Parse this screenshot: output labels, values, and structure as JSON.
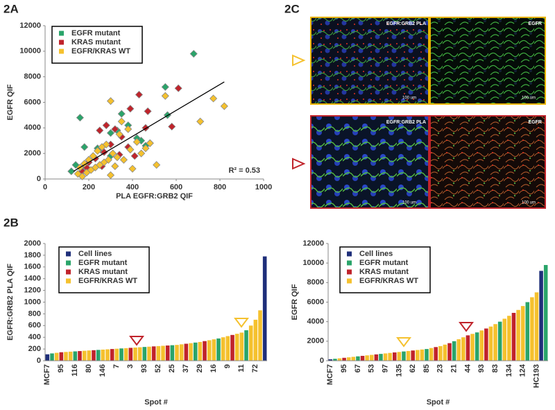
{
  "panel_labels": [
    "2A",
    "2C",
    "2B"
  ],
  "chart_data": [
    {
      "type": "scatter",
      "x_label": "PLA EGFR:GRB2 QIF",
      "y_label": "EGFR QIF",
      "xlim": [
        0,
        1000
      ],
      "xticks": [
        0,
        200,
        400,
        600,
        800,
        1000
      ],
      "ylim": [
        0,
        12000
      ],
      "yticks": [
        0,
        2000,
        4000,
        6000,
        8000,
        10000,
        12000
      ],
      "legend": "upper left",
      "annotation": "R² = 0.53",
      "trendline": {
        "x": [
          130,
          820
        ],
        "y": [
          600,
          7600
        ],
        "color": "#000000"
      },
      "series": [
        {
          "name": "EGFR mutant",
          "color": "#2aa46a",
          "x": [
            680,
            550,
            160,
            560,
            300,
            440,
            350,
            480,
            460,
            240,
            180,
            140,
            200,
            380,
            330,
            120,
            260,
            420,
            170,
            300
          ],
          "y": [
            9800,
            7200,
            4800,
            5000,
            3600,
            3000,
            5100,
            2800,
            2600,
            2400,
            2500,
            1100,
            1500,
            4200,
            3800,
            600,
            2200,
            3200,
            800,
            1800
          ]
        },
        {
          "name": "KRAS mutant",
          "color": "#c0232b",
          "x": [
            610,
            430,
            470,
            580,
            390,
            280,
            320,
            460,
            250,
            350,
            200,
            270,
            300,
            410,
            170,
            230,
            380,
            260,
            190,
            340
          ],
          "y": [
            7100,
            6600,
            5300,
            4100,
            5500,
            4200,
            3900,
            4000,
            3800,
            3300,
            1300,
            2100,
            2700,
            1800,
            600,
            1600,
            2500,
            1000,
            900,
            1900
          ]
        },
        {
          "name": "EGFR/KRAS WT",
          "color": "#f5c12e",
          "x": [
            820,
            770,
            710,
            550,
            510,
            300,
            350,
            380,
            420,
            460,
            400,
            340,
            280,
            260,
            240,
            220,
            200,
            180,
            160,
            150,
            310,
            330,
            290,
            270,
            250,
            230,
            210,
            390,
            440,
            360,
            320,
            480,
            300,
            190,
            170
          ],
          "y": [
            5700,
            6300,
            4500,
            6500,
            1100,
            6100,
            4500,
            3900,
            2900,
            2400,
            800,
            3500,
            2700,
            2500,
            2200,
            1800,
            1500,
            1200,
            900,
            400,
            2000,
            1700,
            1500,
            1300,
            1100,
            900,
            700,
            2300,
            2000,
            1500,
            1000,
            2800,
            300,
            500,
            200
          ]
        }
      ]
    },
    {
      "type": "bar",
      "x_label": "Spot #",
      "y_label": "EGFR:GRB2 PLA QIF",
      "ylim": [
        0,
        2000
      ],
      "yticks": [
        0,
        200,
        400,
        600,
        800,
        1000,
        1200,
        1400,
        1600,
        1800,
        2000
      ],
      "legend": "upper left",
      "categories": [
        "MCF7",
        null,
        null,
        "95",
        null,
        null,
        "116",
        null,
        null,
        "80",
        null,
        null,
        "146",
        null,
        null,
        "7",
        null,
        null,
        "3",
        null,
        null,
        "93",
        null,
        null,
        "52",
        null,
        null,
        "25",
        null,
        null,
        "37",
        null,
        null,
        "29",
        null,
        null,
        "16",
        null,
        null,
        "9",
        null,
        null,
        "11",
        null,
        null,
        "72",
        null,
        null
      ],
      "series": [
        {
          "name": "Cell lines",
          "color": "#1f2f7a",
          "values": [
            110,
            null,
            null,
            null,
            null,
            null,
            null,
            null,
            null,
            null,
            null,
            null,
            null,
            null,
            null,
            null,
            null,
            null,
            null,
            null,
            null,
            null,
            null,
            null,
            null,
            null,
            null,
            null,
            null,
            null,
            null,
            null,
            null,
            null,
            null,
            null,
            null,
            null,
            null,
            null,
            null,
            null,
            null,
            null,
            null,
            null,
            null,
            1780
          ]
        },
        {
          "name": "EGFR mutant",
          "color": "#2aa46a",
          "values": [
            null,
            125,
            null,
            null,
            null,
            null,
            160,
            null,
            null,
            null,
            null,
            185,
            null,
            null,
            null,
            null,
            210,
            null,
            null,
            null,
            null,
            235,
            null,
            null,
            null,
            null,
            null,
            265,
            null,
            null,
            null,
            null,
            310,
            null,
            null,
            null,
            null,
            380,
            null,
            null,
            null,
            null,
            null,
            520,
            null,
            null,
            null,
            null
          ]
        },
        {
          "name": "KRAS mutant",
          "color": "#c0232b",
          "values": [
            null,
            null,
            null,
            145,
            null,
            null,
            null,
            165,
            null,
            null,
            180,
            null,
            null,
            null,
            200,
            null,
            null,
            null,
            220,
            null,
            null,
            null,
            null,
            245,
            null,
            null,
            260,
            null,
            null,
            null,
            290,
            null,
            null,
            null,
            335,
            null,
            null,
            null,
            null,
            null,
            440,
            null,
            null,
            null,
            null,
            null,
            null,
            null
          ]
        },
        {
          "name": "EGFR/KRAS WT",
          "color": "#f5c12e",
          "values": [
            null,
            null,
            135,
            null,
            150,
            155,
            null,
            null,
            170,
            175,
            null,
            null,
            190,
            195,
            null,
            205,
            null,
            215,
            null,
            225,
            230,
            null,
            240,
            null,
            250,
            255,
            null,
            null,
            270,
            280,
            null,
            300,
            null,
            320,
            null,
            350,
            365,
            null,
            400,
            420,
            null,
            460,
            480,
            null,
            600,
            700,
            860,
            null
          ]
        }
      ]
    },
    {
      "type": "bar",
      "x_label": "Spot #",
      "y_label": "EGFR QIF",
      "ylim": [
        0,
        12000
      ],
      "yticks": [
        0,
        2000,
        4000,
        6000,
        8000,
        10000,
        12000
      ],
      "legend": "upper left",
      "categories": [
        "MCF7",
        null,
        null,
        "95",
        null,
        null,
        "67",
        null,
        null,
        "53",
        null,
        null,
        "97",
        null,
        null,
        "135",
        null,
        null,
        "62",
        null,
        null,
        "85",
        null,
        null,
        "23",
        null,
        null,
        "21",
        null,
        null,
        "44",
        null,
        null,
        "93",
        null,
        null,
        "83",
        null,
        null,
        "134",
        null,
        null,
        "124",
        null,
        null,
        "HC193",
        null,
        null
      ],
      "series": [
        {
          "name": "Cell lines",
          "color": "#1f2f7a",
          "values": [
            150,
            null,
            null,
            null,
            null,
            null,
            null,
            null,
            null,
            null,
            null,
            null,
            null,
            null,
            null,
            null,
            null,
            null,
            null,
            null,
            null,
            null,
            null,
            null,
            null,
            null,
            null,
            null,
            null,
            null,
            null,
            null,
            null,
            null,
            null,
            null,
            null,
            null,
            null,
            null,
            null,
            null,
            null,
            null,
            null,
            null,
            9200,
            null
          ]
        },
        {
          "name": "EGFR mutant",
          "color": "#2aa46a",
          "values": [
            null,
            200,
            null,
            null,
            null,
            null,
            450,
            null,
            null,
            null,
            null,
            700,
            null,
            null,
            null,
            null,
            950,
            null,
            null,
            null,
            null,
            1200,
            null,
            null,
            null,
            null,
            null,
            2000,
            null,
            null,
            null,
            null,
            2900,
            null,
            null,
            null,
            null,
            4000,
            null,
            null,
            null,
            null,
            null,
            6000,
            null,
            null,
            null,
            9800
          ]
        },
        {
          "name": "KRAS mutant",
          "color": "#c0232b",
          "values": [
            null,
            null,
            null,
            300,
            null,
            null,
            null,
            500,
            null,
            null,
            650,
            null,
            null,
            null,
            850,
            null,
            null,
            null,
            1050,
            null,
            null,
            null,
            null,
            1400,
            null,
            null,
            1800,
            null,
            null,
            null,
            2600,
            null,
            null,
            null,
            3300,
            null,
            null,
            null,
            null,
            null,
            4900,
            null,
            null,
            null,
            null,
            null,
            null,
            null
          ]
        },
        {
          "name": "EGFR/KRAS WT",
          "color": "#f5c12e",
          "values": [
            null,
            null,
            250,
            null,
            350,
            400,
            null,
            null,
            550,
            600,
            null,
            null,
            750,
            800,
            null,
            900,
            null,
            1000,
            null,
            1100,
            1150,
            null,
            1300,
            null,
            1500,
            1650,
            null,
            null,
            2200,
            2400,
            null,
            2750,
            null,
            3100,
            null,
            3500,
            3750,
            null,
            4300,
            4600,
            null,
            5200,
            5600,
            null,
            6500,
            7000,
            null,
            null
          ]
        }
      ]
    }
  ],
  "micrographs": [
    {
      "label": "EGFR:GRB2 PLA",
      "scale": "100 um"
    },
    {
      "label": "EGFR",
      "scale": "100 um"
    },
    {
      "label": "EGFR:GRB2 PLA",
      "scale": "100 um"
    },
    {
      "label": "EGFR",
      "scale": "100 um"
    }
  ]
}
